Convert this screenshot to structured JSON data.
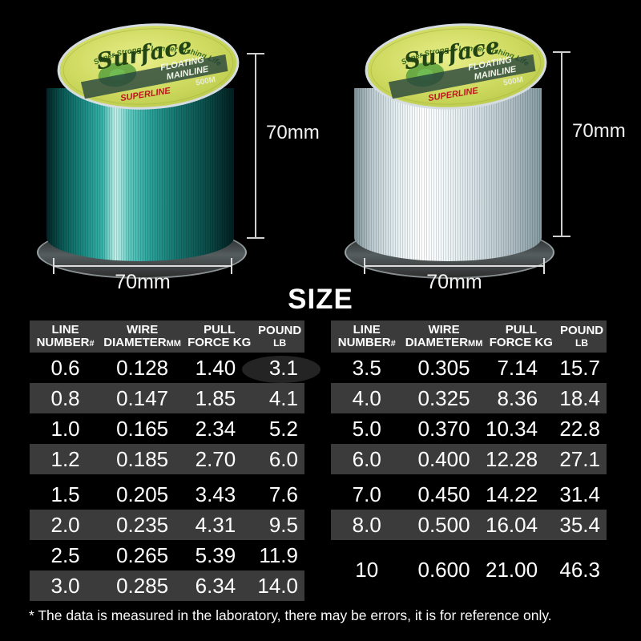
{
  "spool_label": {
    "arc_text": "Super Strong & Longer Fishing Life",
    "brand": "Surface",
    "product_line1": "FLOATING",
    "product_line2": "MAINLINE",
    "length": "500M",
    "series": "SUPERLINE"
  },
  "dimensions": {
    "height": "70mm",
    "width": "70mm"
  },
  "size_section": {
    "title": "SIZE"
  },
  "table_headers": {
    "col1_line1": "LINE",
    "col1_line2": "NUMBER",
    "col1_suffix": "#",
    "col2_line1": "WIRE",
    "col2_line2": "DIAMETER",
    "col2_suffix": "MM",
    "col3_line1": "PULL",
    "col3_line2": "FORCE KG",
    "col4_line1": "POUND",
    "col4_line2": "LB"
  },
  "tables": {
    "left": {
      "rows": [
        [
          "0.6",
          "0.128",
          "1.40",
          "3.1"
        ],
        [
          "0.8",
          "0.147",
          "1.85",
          "4.1"
        ],
        [
          "1.0",
          "0.165",
          "2.34",
          "5.2"
        ],
        [
          "1.2",
          "0.185",
          "2.70",
          "6.0"
        ],
        [
          "1.5",
          "0.205",
          "3.43",
          "7.6"
        ],
        [
          "2.0",
          "0.235",
          "4.31",
          "9.5"
        ],
        [
          "2.5",
          "0.265",
          "5.39",
          "11.9"
        ],
        [
          "3.0",
          "0.285",
          "6.34",
          "14.0"
        ]
      ]
    },
    "right": {
      "rows": [
        [
          "3.5",
          "0.305",
          "7.14",
          "15.7"
        ],
        [
          "4.0",
          "0.325",
          "8.36",
          "18.4"
        ],
        [
          "5.0",
          "0.370",
          "10.34",
          "22.8"
        ],
        [
          "6.0",
          "0.400",
          "12.28",
          "27.1"
        ],
        [
          "7.0",
          "0.450",
          "14.22",
          "31.4"
        ],
        [
          "8.0",
          "0.500",
          "16.04",
          "35.4"
        ],
        [
          "10",
          "0.600",
          "21.00",
          "46.3"
        ]
      ]
    }
  },
  "footnote": "* The data is measured in the laboratory, there may be errors, it is for reference only.",
  "colors": {
    "row_alt": "#3b3b3b",
    "spool_teal": "#2aa39a",
    "label_yellow": "#cdd95e",
    "superline_red": "#c1121f"
  }
}
